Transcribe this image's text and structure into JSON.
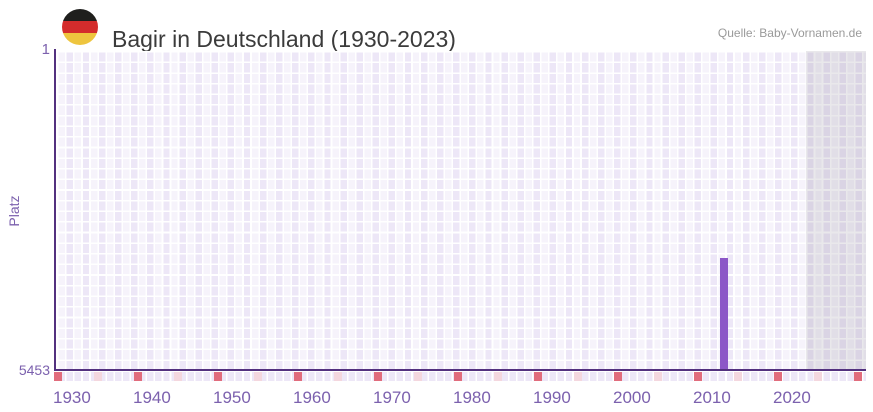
{
  "header": {
    "title": "Bagir in Deutschland (1930-2023)",
    "source": "Quelle: Baby-Vornamen.de",
    "flag_icon": "germany-flag"
  },
  "chart_data": {
    "type": "bar",
    "title": "Bagir in Deutschland (1930-2023)",
    "xlabel": "",
    "ylabel": "Platz",
    "y_axis": {
      "top_label": "1",
      "bottom_label": "5453",
      "min": 1,
      "max": 5453,
      "reversed": true
    },
    "x_axis": {
      "start_year": 1930,
      "end_year": 2023,
      "tick_labels": [
        "1930",
        "1940",
        "1950",
        "1960",
        "1970",
        "1980",
        "1990",
        "2000",
        "2010",
        "2020"
      ],
      "decade_marker_years": [
        1930,
        1940,
        1950,
        1960,
        1970,
        1980,
        1990,
        2000,
        2010,
        2020,
        2030
      ],
      "half_decade_marker_years": [
        1935,
        1945,
        1955,
        1965,
        1975,
        1985,
        1995,
        2005,
        2015,
        2025
      ],
      "future_from_year": 2024
    },
    "series": [
      {
        "name": "Bagir",
        "points": [
          {
            "year": 2013,
            "rank": 3538
          }
        ]
      }
    ],
    "legend": "none",
    "grid": true,
    "colors": {
      "bar": "#8c57c7",
      "axis_line": "#53317f",
      "axis_label": "#7c61ae",
      "grid_cell": "#ede7f7",
      "future_band": "#e2dfe9",
      "decade_marker": "#e16c7c",
      "half_decade_marker": "#f4d7de",
      "title_text": "#3b3b3b",
      "source_text": "#9a9a9a",
      "flag_black": "#1f1f1d",
      "flag_red": "#d42c2c",
      "flag_gold": "#eec53e"
    }
  }
}
